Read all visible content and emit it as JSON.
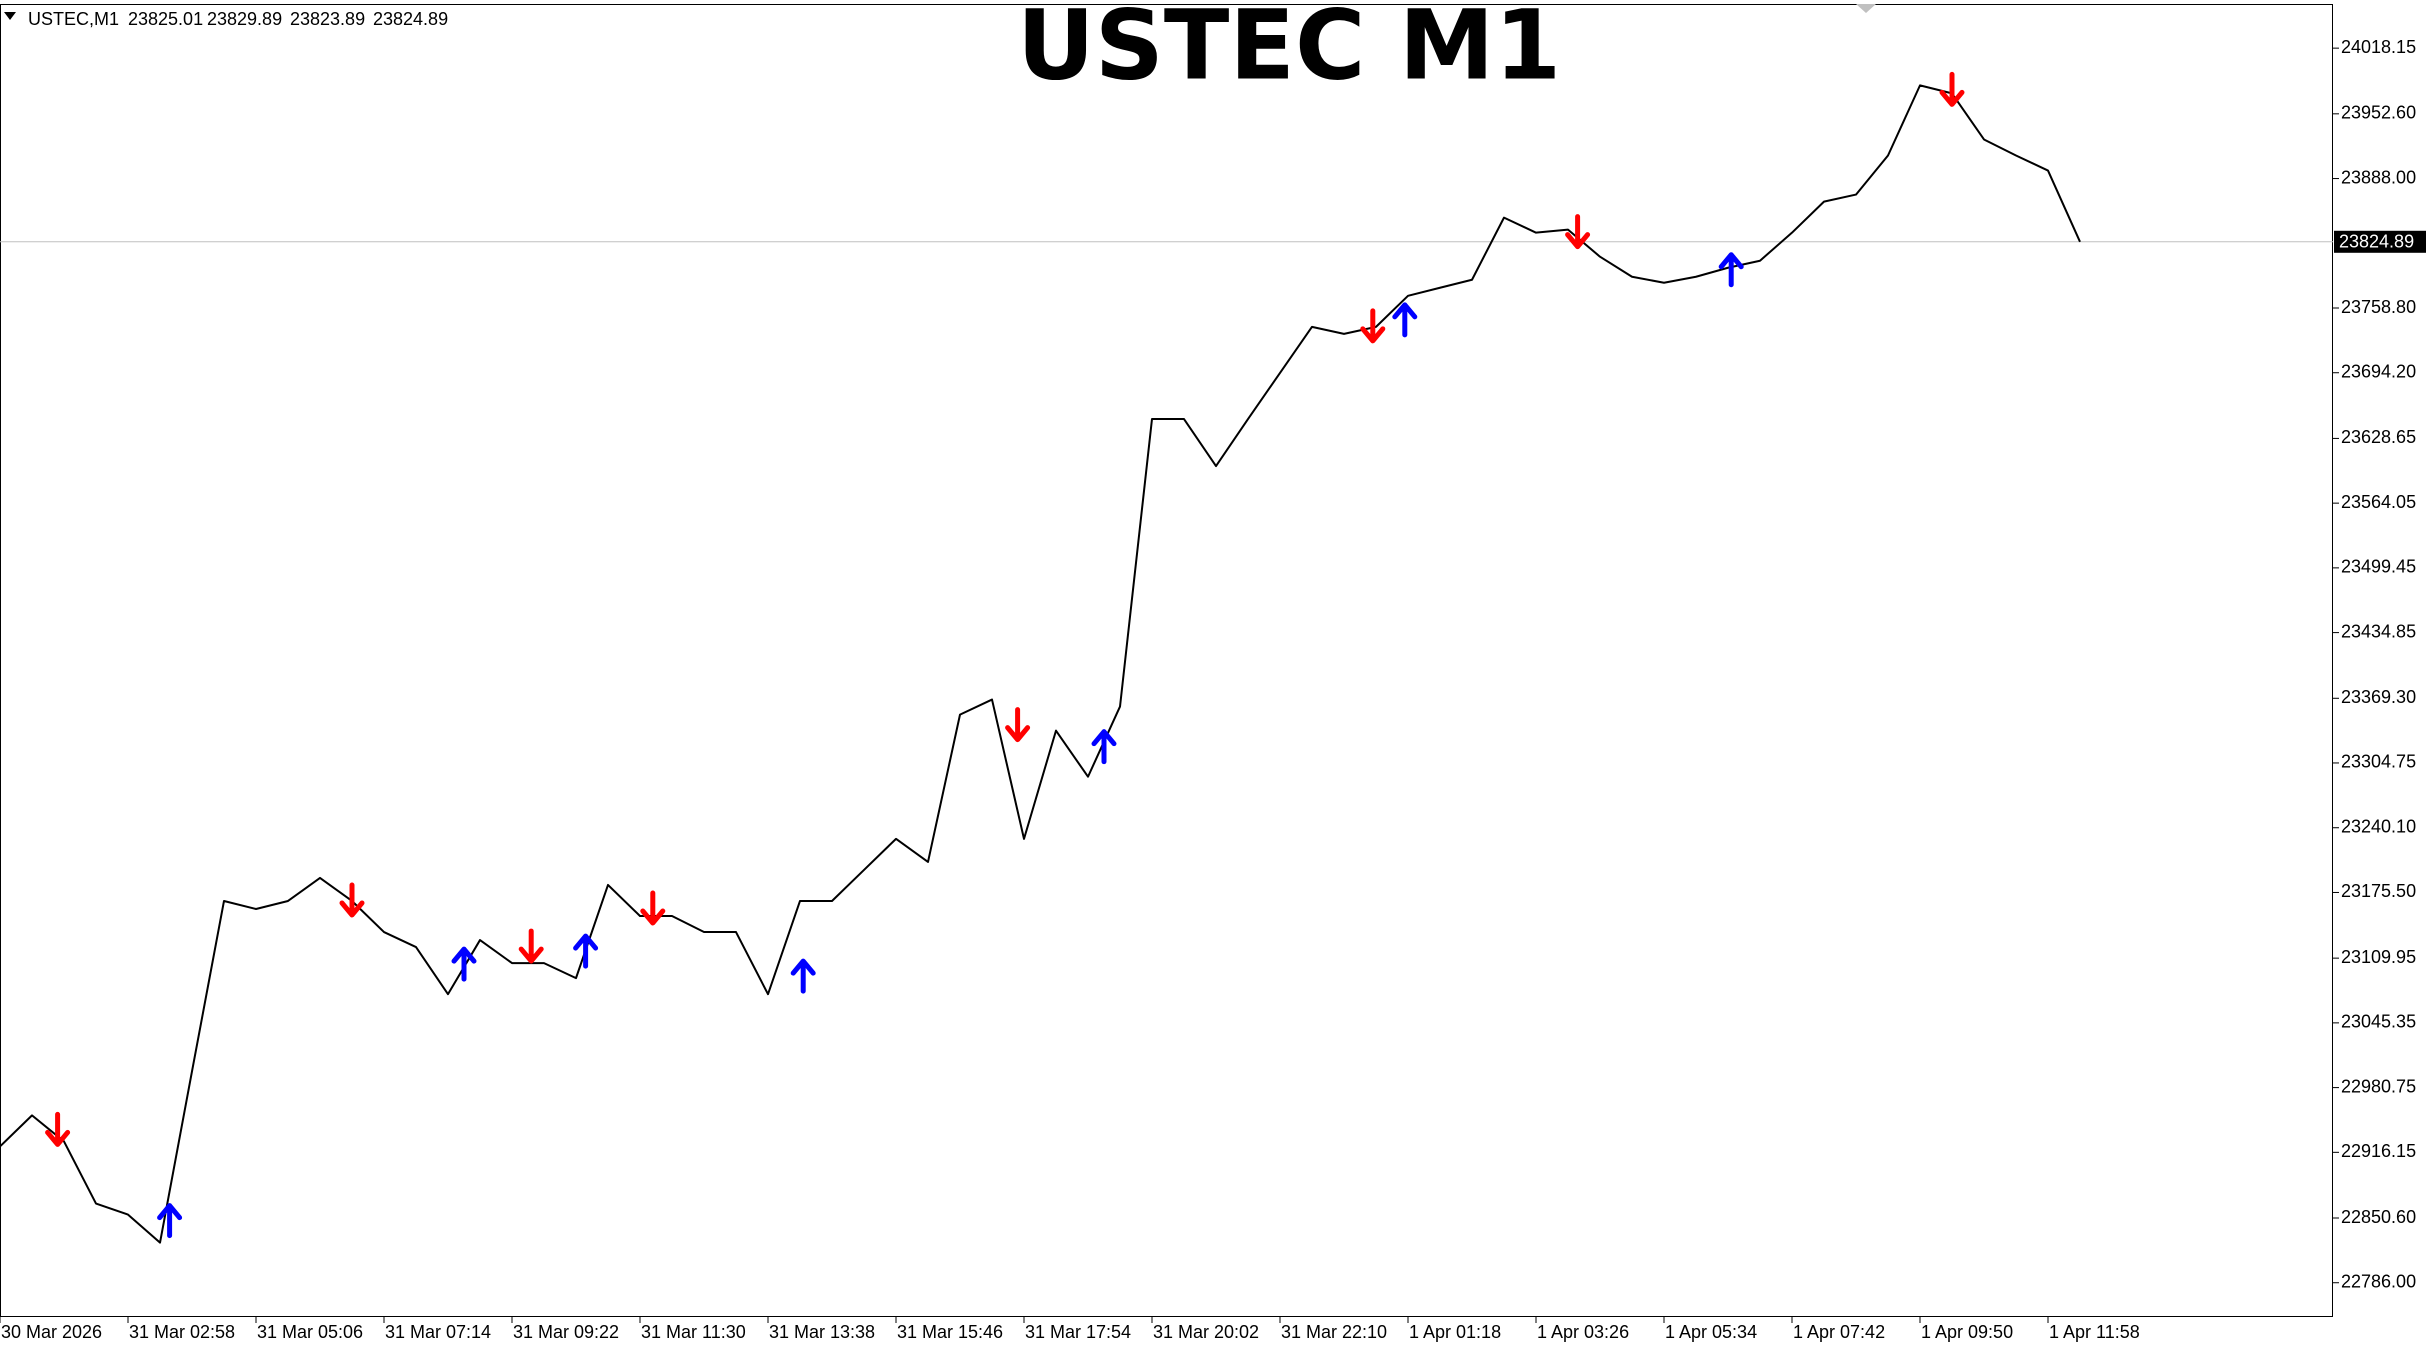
{
  "header": {
    "symbol": "USTEC,M1",
    "ohlc": [
      23825.01,
      23829.89,
      23823.89,
      23824.89
    ]
  },
  "chart_data": {
    "type": "line",
    "title": "USTEC M1",
    "categories": [
      "30 Mar 2026",
      null,
      null,
      null,
      "31 Mar 02:58",
      null,
      null,
      null,
      "31 Mar 05:06",
      null,
      null,
      null,
      "31 Mar 07:14",
      null,
      null,
      null,
      "31 Mar 09:22",
      null,
      null,
      null,
      "31 Mar 11:30",
      null,
      null,
      null,
      "31 Mar 13:38",
      null,
      null,
      null,
      "31 Mar 15:46",
      null,
      null,
      null,
      "31 Mar 17:54",
      null,
      null,
      null,
      "31 Mar 20:02",
      null,
      null,
      null,
      "31 Mar 22:10",
      null,
      null,
      null,
      "1 Apr 01:18",
      null,
      null,
      null,
      "1 Apr 03:26",
      null,
      null,
      null,
      "1 Apr 05:34",
      null,
      null,
      null,
      "1 Apr 07:42",
      null,
      null,
      null,
      "1 Apr 09:50",
      null,
      null,
      null,
      "1 Apr 11:58",
      null
    ],
    "series": [
      {
        "color": "#000000",
        "values": [
          22922,
          22953,
          22927,
          22865,
          22854,
          22826,
          22997,
          23167,
          23159,
          23167,
          23190,
          23167,
          23136,
          23121,
          23074,
          23128,
          23105,
          23105,
          23090,
          23183,
          23152,
          23152,
          23136,
          23136,
          23074,
          23167,
          23167,
          23198,
          23229,
          23206,
          23353,
          23368,
          23229,
          23337,
          23291,
          23361,
          23648,
          23648,
          23601,
          23648,
          23694,
          23740,
          23733,
          23740,
          23771,
          23779,
          23787,
          23849,
          23834,
          23837,
          23810,
          23790,
          23784,
          23790,
          23799,
          23806,
          23834,
          23865,
          23872,
          23911,
          23981,
          23973,
          23927,
          23911,
          23896,
          23824.89
        ]
      },
      {
        "marker": "arrow-down",
        "color": "#ff0000",
        "x": [
          1.8,
          11.0,
          16.6,
          20.4,
          31.8,
          42.9,
          49.3,
          61.0
        ],
        "values": [
          22938,
          23167,
          23121,
          23159,
          23342,
          23740,
          23834,
          23976
        ]
      },
      {
        "marker": "arrow-up",
        "color": "#0000ff",
        "x": [
          5.3,
          14.5,
          18.3,
          25.1,
          34.5,
          43.9,
          54.1
        ],
        "values": [
          22849,
          23105,
          23118,
          23093,
          23322,
          23748,
          23798
        ]
      }
    ],
    "ylim": [
      22751.8,
      24066.2
    ],
    "yticks": [
      24018.15,
      {
        "value": 23952.6,
        "label": "23952.60"
      },
      {
        "value": 23888,
        "label": "23888.00"
      },
      {
        "value": 23758.8,
        "label": "23758.80"
      },
      {
        "value": 23694.2,
        "label": "23694.20"
      },
      23628.65,
      23564.05,
      23499.45,
      23434.85,
      {
        "value": 23369.3,
        "label": "23369.30"
      },
      23304.75,
      {
        "value": 23240.1,
        "label": "23240.10"
      },
      {
        "value": 23175.5,
        "label": "23175.50"
      },
      23109.95,
      23045.35,
      22980.75,
      22916.15,
      {
        "value": 22850.6,
        "label": "22850.60"
      },
      {
        "value": 22786,
        "label": "22786.00"
      }
    ],
    "price_line": 23824.89
  }
}
